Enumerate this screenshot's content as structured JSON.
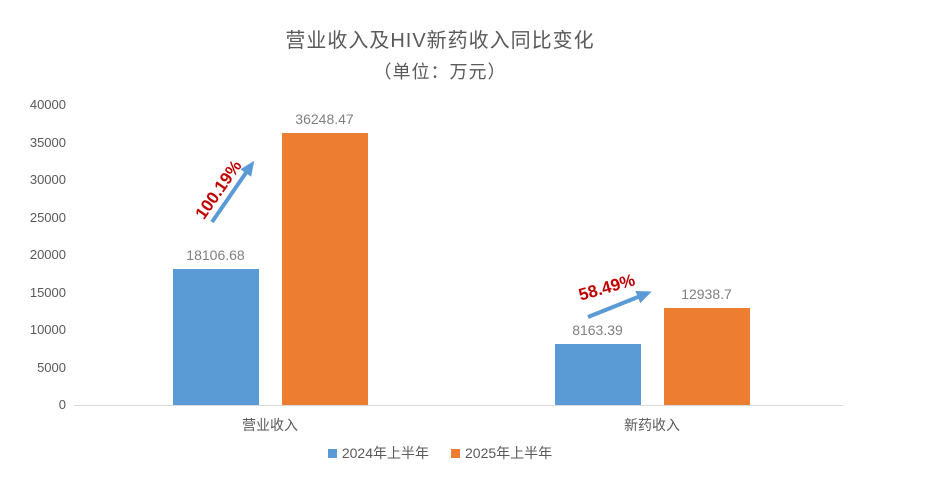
{
  "chart_data": {
    "type": "bar",
    "title": "营业收入及HIV新药收入同比变化",
    "subtitle": "（单位：万元）",
    "categories": [
      "营业收入",
      "新药收入"
    ],
    "series": [
      {
        "name": "2024年上半年",
        "color": "#5B9BD5",
        "values": [
          18106.68,
          8163.39
        ],
        "labels": [
          "18106.68",
          "8163.39"
        ]
      },
      {
        "name": "2025年上半年",
        "color": "#ED7D31",
        "values": [
          36248.47,
          12938.7
        ],
        "labels": [
          "36248.47",
          "12938.7"
        ]
      }
    ],
    "annotations": [
      {
        "label": "100.19%",
        "color": "#C00000",
        "arrow_color": "#5B9BD5",
        "category": "营业收入"
      },
      {
        "label": "58.49%",
        "color": "#C00000",
        "arrow_color": "#5B9BD5",
        "category": "新药收入"
      }
    ],
    "y_axis": {
      "min": 0,
      "max": 40000,
      "step": 5000,
      "ticks": [
        "0",
        "5000",
        "10000",
        "15000",
        "20000",
        "25000",
        "30000",
        "35000",
        "40000"
      ]
    },
    "grid": false,
    "legend_position": "bottom",
    "colors": {
      "axis_text": "#595959",
      "data_label": "#808080",
      "axis_line": "#D9D9D9",
      "background": "#FFFFFF"
    }
  }
}
